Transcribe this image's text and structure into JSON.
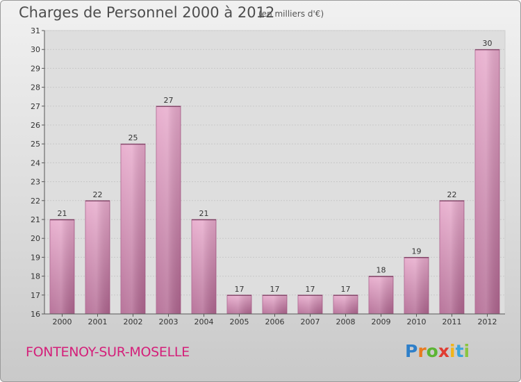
{
  "header": {
    "title": "Charges de Personnel 2000 à 2012",
    "subtitle": "(en milliers d'€)"
  },
  "footer": {
    "commune": "FONTENOY-SUR-MOSELLE",
    "logo_letters": [
      "P",
      "r",
      "o",
      "x",
      "i",
      "t",
      "i"
    ],
    "logo_colors": [
      "#2e7fc9",
      "#e97a1e",
      "#5bb533",
      "#e03c31",
      "#f2b418",
      "#3aa5dc",
      "#8bc53f"
    ]
  },
  "chart_data": {
    "type": "bar",
    "categories": [
      "2000",
      "2001",
      "2002",
      "2003",
      "2004",
      "2005",
      "2006",
      "2007",
      "2008",
      "2009",
      "2010",
      "2011",
      "2012"
    ],
    "values": [
      21,
      22,
      25,
      27,
      21,
      17,
      17,
      17,
      17,
      18,
      19,
      22,
      30
    ],
    "ylim": [
      16,
      31
    ],
    "yticks": [
      16,
      17,
      18,
      19,
      20,
      21,
      22,
      23,
      24,
      25,
      26,
      27,
      28,
      29,
      30,
      31
    ],
    "grid": true,
    "bar_color": "#c9719f",
    "data_labels": true
  }
}
